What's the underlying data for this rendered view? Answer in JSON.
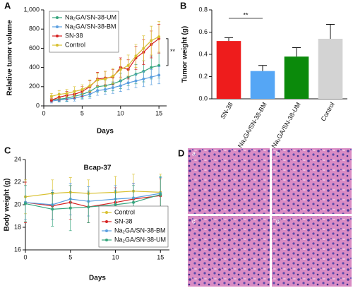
{
  "panel_labels": [
    "A",
    "B",
    "C",
    "D"
  ],
  "images": {
    "labels": [
      "a",
      "b",
      "c",
      "d"
    ]
  },
  "chart_data": [
    {
      "type": "line",
      "xlabel": "Days",
      "ylabel": "Relative tumor volume",
      "annotation": "**",
      "x": [
        1,
        2,
        3,
        4,
        5,
        6,
        7,
        8,
        9,
        10,
        11,
        12,
        13,
        14,
        15
      ],
      "xlim": [
        0,
        16
      ],
      "xticks": [
        0,
        5,
        10,
        15
      ],
      "ylim": [
        0,
        1000
      ],
      "yticks": [
        0,
        200,
        400,
        600,
        800,
        {
          "value": 1000,
          "label": "1,000"
        }
      ],
      "legend": "upper left",
      "series": [
        {
          "name": "Na₂GA/SN-38-UM",
          "color": "#35a57d",
          "values": [
            60,
            70,
            80,
            100,
            120,
            150,
            200,
            210,
            230,
            260,
            300,
            330,
            360,
            400,
            420
          ],
          "errors": [
            20,
            25,
            30,
            30,
            40,
            50,
            60,
            60,
            70,
            80,
            90,
            100,
            110,
            120,
            130
          ]
        },
        {
          "name": "Na₂GA/SN-38-BM",
          "color": "#5b9fe0",
          "values": [
            50,
            60,
            70,
            80,
            100,
            120,
            160,
            170,
            190,
            210,
            240,
            260,
            280,
            300,
            320
          ],
          "errors": [
            20,
            20,
            25,
            30,
            30,
            40,
            50,
            50,
            60,
            60,
            70,
            70,
            80,
            80,
            90
          ]
        },
        {
          "name": "SN-38",
          "color": "#d62020",
          "values": [
            60,
            90,
            110,
            120,
            150,
            200,
            280,
            290,
            300,
            400,
            380,
            500,
            560,
            640,
            700
          ],
          "errors": [
            20,
            30,
            40,
            40,
            50,
            60,
            70,
            70,
            80,
            100,
            100,
            120,
            130,
            140,
            150
          ]
        },
        {
          "name": "Control",
          "color": "#d8c030",
          "values": [
            100,
            120,
            130,
            150,
            170,
            210,
            270,
            280,
            310,
            380,
            420,
            520,
            600,
            680,
            720
          ],
          "errors": [
            30,
            40,
            40,
            50,
            50,
            60,
            70,
            80,
            80,
            100,
            110,
            120,
            130,
            150,
            160
          ]
        }
      ]
    },
    {
      "type": "bar",
      "ylabel": "Tumor weight (g)",
      "annotation": "**",
      "categories": [
        "SN-38",
        "Na₂GA/SN-38-BM",
        "Na₂GA/SN-38-UM",
        "Control"
      ],
      "values": [
        0.52,
        0.25,
        0.38,
        0.54
      ],
      "errors": [
        0.03,
        0.05,
        0.08,
        0.13
      ],
      "colors": [
        "#ee1c1c",
        "#55a6f5",
        "#0b8a0b",
        "#d3d3d3"
      ],
      "ylim": [
        0,
        0.8
      ],
      "yticks": [
        {
          "value": 0,
          "label": "0.0"
        },
        0.2,
        0.4,
        0.6,
        0.8
      ]
    },
    {
      "type": "line",
      "title": "Bcap-37",
      "xlabel": "Days",
      "ylabel": "Body weight (g)",
      "x": [
        0,
        3,
        5,
        7,
        10,
        12,
        15
      ],
      "xlim": [
        0,
        16
      ],
      "xticks": [
        0,
        5,
        10,
        15
      ],
      "ylim": [
        16,
        24
      ],
      "yticks": [
        16,
        18,
        20,
        22,
        24
      ],
      "legend": "lower right",
      "series": [
        {
          "name": "Control",
          "color": "#d8c030",
          "values": [
            20.7,
            21.0,
            21.1,
            21.0,
            21.1,
            21.2,
            21.1
          ],
          "errors": [
            1.5,
            1.2,
            1.3,
            1.2,
            1.4,
            1.5,
            1.6
          ]
        },
        {
          "name": "SN-38",
          "color": "#d62020",
          "values": [
            20.2,
            19.9,
            20.2,
            19.8,
            20.2,
            20.5,
            20.8
          ],
          "errors": [
            1.8,
            1.2,
            1.5,
            1.4,
            1.3,
            1.4,
            1.5
          ]
        },
        {
          "name": "Na₂GA/SN-38-BM",
          "color": "#5b9fe0",
          "values": [
            20.2,
            20.0,
            20.5,
            20.3,
            20.5,
            20.6,
            21.0
          ],
          "errors": [
            1.5,
            1.3,
            1.4,
            1.3,
            1.2,
            1.3,
            1.4
          ]
        },
        {
          "name": "Na₂GA/SN-38-UM",
          "color": "#35a57d",
          "values": [
            20.1,
            19.6,
            19.7,
            19.8,
            20.0,
            20.2,
            20.9
          ],
          "errors": [
            1.6,
            1.5,
            2.0,
            1.4,
            1.3,
            1.5,
            1.6
          ]
        }
      ]
    }
  ]
}
